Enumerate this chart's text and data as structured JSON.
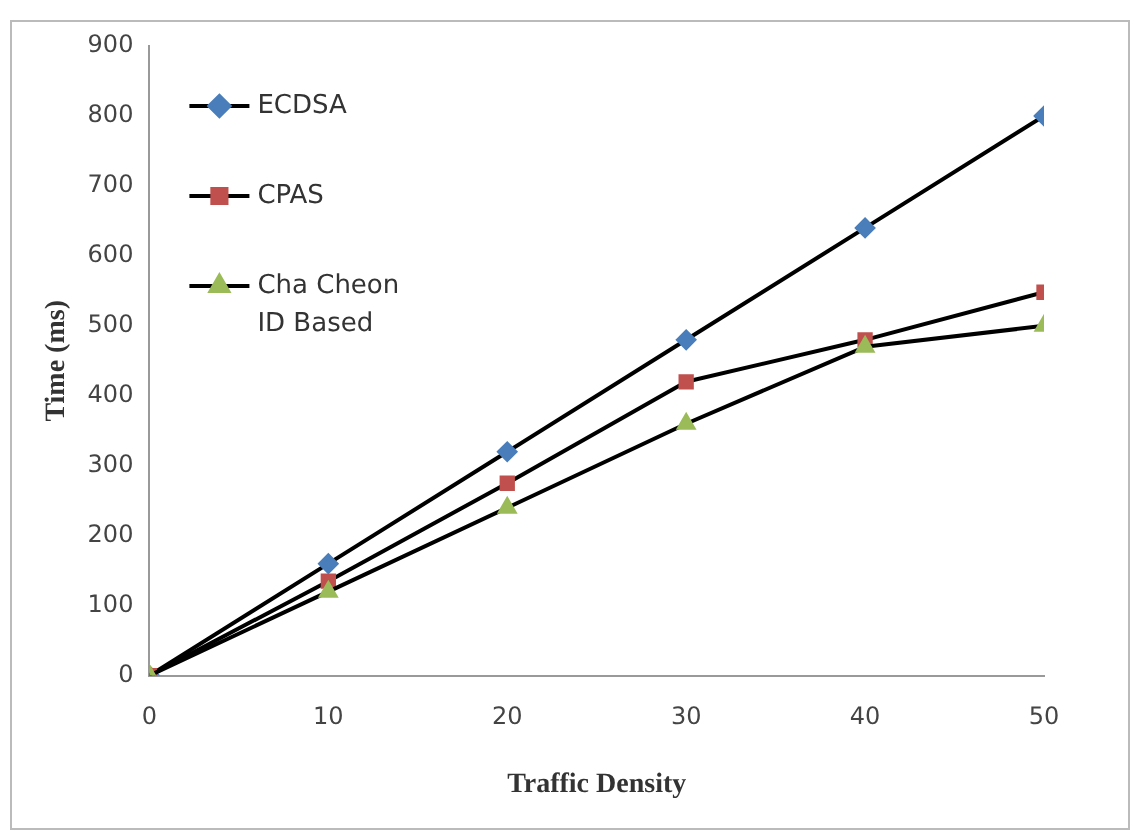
{
  "chart_data": {
    "type": "line",
    "xlabel": "Traffic Density",
    "ylabel": "Time (ms)",
    "x": [
      0,
      10,
      20,
      30,
      40,
      50
    ],
    "series": [
      {
        "name": "ECDSA",
        "color": "#4a7ebb",
        "marker": "diamond",
        "values": [
          0,
          160,
          320,
          480,
          640,
          800
        ]
      },
      {
        "name": "CPAS",
        "color": "#c0504d",
        "marker": "square",
        "values": [
          0,
          135,
          275,
          420,
          480,
          548
        ]
      },
      {
        "name": "Cha Cheon ID Based",
        "color": "#9bbb59",
        "marker": "triangle",
        "values": [
          0,
          120,
          240,
          360,
          470,
          500
        ]
      }
    ],
    "xlim": [
      0,
      50
    ],
    "xticks": [
      0,
      10,
      20,
      30,
      40,
      50
    ],
    "ylim": [
      0,
      900
    ],
    "yticks": [
      0,
      100,
      200,
      300,
      400,
      500,
      600,
      700,
      800,
      900
    ],
    "grid": false,
    "legend": "top left"
  }
}
